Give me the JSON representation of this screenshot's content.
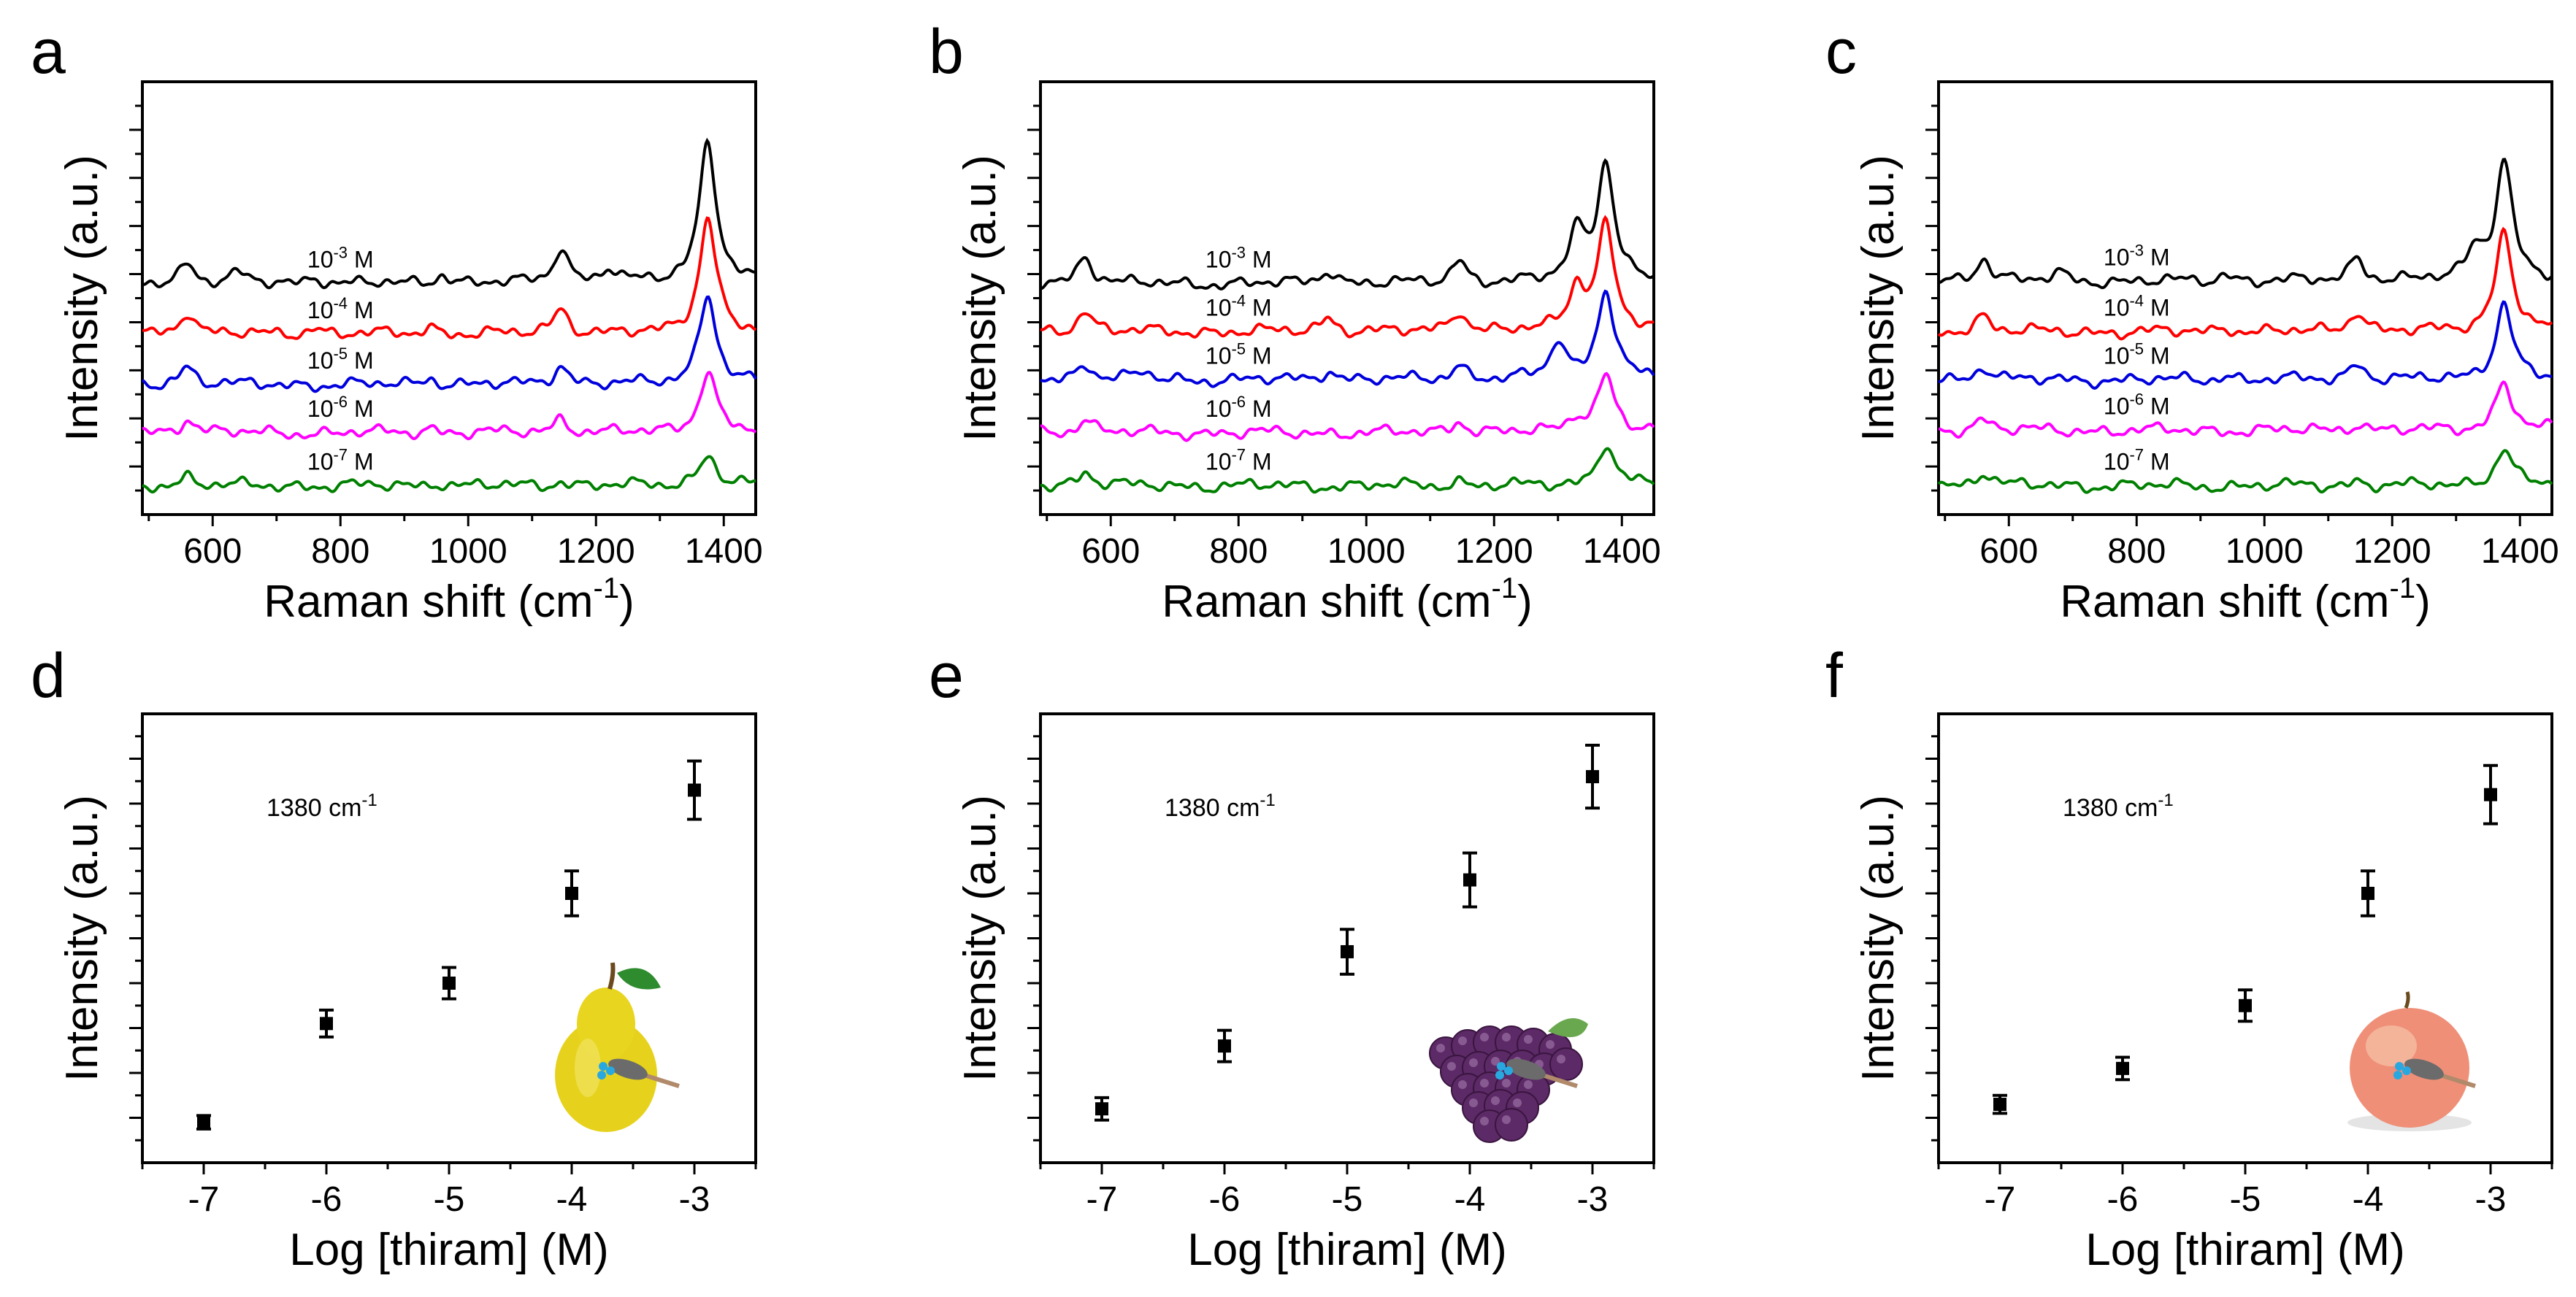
{
  "chart_data": [
    {
      "panel": "a",
      "type": "line",
      "xlabel": "Raman shift (cm-1)",
      "ylabel": "Intensity (a.u.)",
      "xlim": [
        490,
        1450
      ],
      "xticks": [
        "600",
        "800",
        "1000",
        "1200",
        "1400"
      ],
      "series": [
        {
          "name": "10-3 M",
          "base": "10",
          "exp": "-3",
          "unit": "M",
          "color": "#000000",
          "offset": 4.8,
          "peaks": [
            [
              560,
              0.45
            ],
            [
              640,
              0.2
            ],
            [
              760,
              0.15
            ],
            [
              960,
              0.2
            ],
            [
              1145,
              0.75
            ],
            [
              1220,
              0.3
            ],
            [
              1375,
              3.0
            ]
          ]
        },
        {
          "name": "10-4 M",
          "base": "10",
          "exp": "-4",
          "unit": "M",
          "color": "#ff0000",
          "offset": 3.75,
          "peaks": [
            [
              560,
              0.5
            ],
            [
              760,
              0.15
            ],
            [
              940,
              0.15
            ],
            [
              1145,
              0.55
            ],
            [
              1375,
              2.45
            ]
          ]
        },
        {
          "name": "10-5 M",
          "base": "10",
          "exp": "-5",
          "unit": "M",
          "color": "#0000dd",
          "offset": 2.7,
          "peaks": [
            [
              560,
              0.4
            ],
            [
              940,
              0.15
            ],
            [
              1145,
              0.4
            ],
            [
              1375,
              1.9
            ]
          ]
        },
        {
          "name": "10-6 M",
          "base": "10",
          "exp": "-6",
          "unit": "M",
          "color": "#ff00ff",
          "offset": 1.7,
          "peaks": [
            [
              560,
              0.3
            ],
            [
              940,
              0.1
            ],
            [
              1145,
              0.3
            ],
            [
              1375,
              1.3
            ]
          ]
        },
        {
          "name": "10-7 M",
          "base": "10",
          "exp": "-7",
          "unit": "M",
          "color": "#008000",
          "offset": 0.6,
          "peaks": [
            [
              560,
              0.2
            ],
            [
              950,
              0.08
            ],
            [
              1145,
              0.1
            ],
            [
              1375,
              0.65
            ]
          ]
        }
      ]
    },
    {
      "panel": "b",
      "type": "line",
      "xlabel": "Raman shift (cm-1)",
      "ylabel": "Intensity (a.u.)",
      "xlim": [
        490,
        1450
      ],
      "xticks": [
        "600",
        "800",
        "1000",
        "1200",
        "1400"
      ],
      "series": [
        {
          "name": "10-3 M",
          "base": "10",
          "exp": "-3",
          "unit": "M",
          "color": "#000000",
          "offset": 4.8,
          "peaks": [
            [
              560,
              0.6
            ],
            [
              940,
              0.3
            ],
            [
              1145,
              0.5
            ],
            [
              1330,
              1.0
            ],
            [
              1375,
              2.5
            ]
          ]
        },
        {
          "name": "10-4 M",
          "base": "10",
          "exp": "-4",
          "unit": "M",
          "color": "#ff0000",
          "offset": 3.8,
          "peaks": [
            [
              560,
              0.45
            ],
            [
              940,
              0.3
            ],
            [
              1145,
              0.45
            ],
            [
              1330,
              0.9
            ],
            [
              1375,
              2.2
            ]
          ]
        },
        {
          "name": "10-5 M",
          "base": "10",
          "exp": "-5",
          "unit": "M",
          "color": "#0000dd",
          "offset": 2.8,
          "peaks": [
            [
              560,
              0.35
            ],
            [
              650,
              0.15
            ],
            [
              940,
              0.2
            ],
            [
              1145,
              0.3
            ],
            [
              1300,
              0.8
            ],
            [
              1375,
              1.9
            ]
          ]
        },
        {
          "name": "10-6 M",
          "base": "10",
          "exp": "-6",
          "unit": "M",
          "color": "#ff00ff",
          "offset": 1.7,
          "peaks": [
            [
              560,
              0.3
            ],
            [
              1145,
              0.25
            ],
            [
              1330,
              0.3
            ],
            [
              1375,
              1.2
            ]
          ]
        },
        {
          "name": "10-7 M",
          "base": "10",
          "exp": "-7",
          "unit": "M",
          "color": "#008000",
          "offset": 0.6,
          "peaks": [
            [
              560,
              0.3
            ],
            [
              1145,
              0.1
            ],
            [
              1375,
              0.9
            ]
          ]
        }
      ]
    },
    {
      "panel": "c",
      "type": "line",
      "xlabel": "Raman shift (cm-1)",
      "ylabel": "Intensity (a.u.)",
      "xlim": [
        490,
        1450
      ],
      "xticks": [
        "600",
        "800",
        "1000",
        "1200",
        "1400"
      ],
      "series": [
        {
          "name": "10-3 M",
          "base": "10",
          "exp": "-3",
          "unit": "M",
          "color": "#000000",
          "offset": 4.85,
          "peaks": [
            [
              560,
              0.5
            ],
            [
              680,
              0.15
            ],
            [
              940,
              0.15
            ],
            [
              1145,
              0.5
            ],
            [
              1330,
              0.6
            ],
            [
              1375,
              2.5
            ]
          ]
        },
        {
          "name": "10-4 M",
          "base": "10",
          "exp": "-4",
          "unit": "M",
          "color": "#ff0000",
          "offset": 3.8,
          "peaks": [
            [
              560,
              0.35
            ],
            [
              940,
              0.1
            ],
            [
              1145,
              0.45
            ],
            [
              1375,
              2.1
            ]
          ]
        },
        {
          "name": "10-5 M",
          "base": "10",
          "exp": "-5",
          "unit": "M",
          "color": "#0000dd",
          "offset": 2.8,
          "peaks": [
            [
              560,
              0.3
            ],
            [
              940,
              0.1
            ],
            [
              1145,
              0.35
            ],
            [
              1375,
              1.6
            ]
          ]
        },
        {
          "name": "10-6 M",
          "base": "10",
          "exp": "-6",
          "unit": "M",
          "color": "#ff00ff",
          "offset": 1.75,
          "peaks": [
            [
              560,
              0.25
            ],
            [
              1145,
              0.15
            ],
            [
              1375,
              1.0
            ]
          ]
        },
        {
          "name": "10-7 M",
          "base": "10",
          "exp": "-7",
          "unit": "M",
          "color": "#008000",
          "offset": 0.6,
          "peaks": [
            [
              560,
              0.3
            ],
            [
              1145,
              0.1
            ],
            [
              1375,
              0.8
            ]
          ]
        }
      ]
    },
    {
      "panel": "d",
      "type": "scatter",
      "xlabel": "Log [thiram] (M)",
      "ylabel": "Intensity (a.u.)",
      "annotation": "1380 cm-1",
      "annotation_base": "1380 cm",
      "annotation_exp": "-1",
      "fruit": "pear",
      "xlim": [
        -7.5,
        -2.5
      ],
      "xticks": [
        "-7",
        "-6",
        "-5",
        "-4",
        "-3"
      ],
      "ylim": [
        0,
        10
      ],
      "x": [
        -7,
        -6,
        -5,
        -4,
        -3
      ],
      "y": [
        0.9,
        3.1,
        4.0,
        6.0,
        8.3
      ],
      "err": [
        0.15,
        0.3,
        0.35,
        0.5,
        0.65
      ]
    },
    {
      "panel": "e",
      "type": "scatter",
      "xlabel": "Log [thiram] (M)",
      "ylabel": "Intensity (a.u.)",
      "annotation": "1380 cm-1",
      "annotation_base": "1380 cm",
      "annotation_exp": "-1",
      "fruit": "grape",
      "xlim": [
        -7.5,
        -2.5
      ],
      "xticks": [
        "-7",
        "-6",
        "-5",
        "-4",
        "-3"
      ],
      "ylim": [
        0,
        10
      ],
      "x": [
        -7,
        -6,
        -5,
        -4,
        -3
      ],
      "y": [
        1.2,
        2.6,
        4.7,
        6.3,
        8.6
      ],
      "err": [
        0.25,
        0.35,
        0.5,
        0.6,
        0.7
      ]
    },
    {
      "panel": "f",
      "type": "scatter",
      "xlabel": "Log [thiram] (M)",
      "ylabel": "Intensity (a.u.)",
      "annotation": "1380 cm-1",
      "annotation_base": "1380 cm",
      "annotation_exp": "-1",
      "fruit": "peach",
      "xlim": [
        -7.5,
        -2.5
      ],
      "xticks": [
        "-7",
        "-6",
        "-5",
        "-4",
        "-3"
      ],
      "ylim": [
        0,
        10
      ],
      "x": [
        -7,
        -6,
        -5,
        -4,
        -3
      ],
      "y": [
        1.3,
        2.1,
        3.5,
        6.0,
        8.2
      ],
      "err": [
        0.2,
        0.25,
        0.35,
        0.5,
        0.65
      ]
    }
  ],
  "labels": {
    "raman_prefix": "Raman shift (cm",
    "raman_exp": "-1",
    "raman_suffix": ")",
    "ylabel": "Intensity (a.u.)",
    "log_xlabel": "Log [thiram] (M)"
  }
}
